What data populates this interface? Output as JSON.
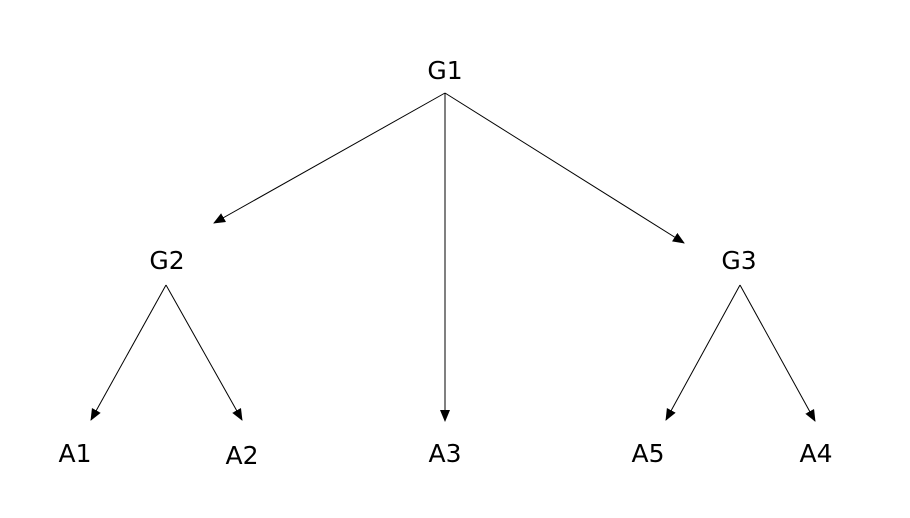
{
  "diagram": {
    "type": "tree",
    "nodes": [
      {
        "id": "G1",
        "label": "G1"
      },
      {
        "id": "G2",
        "label": "G2"
      },
      {
        "id": "G3",
        "label": "G3"
      },
      {
        "id": "A1",
        "label": "A1"
      },
      {
        "id": "A2",
        "label": "A2"
      },
      {
        "id": "A3",
        "label": "A3"
      },
      {
        "id": "A5",
        "label": "A5"
      },
      {
        "id": "A4",
        "label": "A4"
      }
    ],
    "edges": [
      {
        "from": "G1",
        "to": "G2"
      },
      {
        "from": "G1",
        "to": "A3"
      },
      {
        "from": "G1",
        "to": "G3"
      },
      {
        "from": "G2",
        "to": "A1"
      },
      {
        "from": "G2",
        "to": "A2"
      },
      {
        "from": "G3",
        "to": "A5"
      },
      {
        "from": "G3",
        "to": "A4"
      }
    ],
    "colors": {
      "stroke": "#000000",
      "text": "#000000",
      "background": "#ffffff"
    }
  }
}
